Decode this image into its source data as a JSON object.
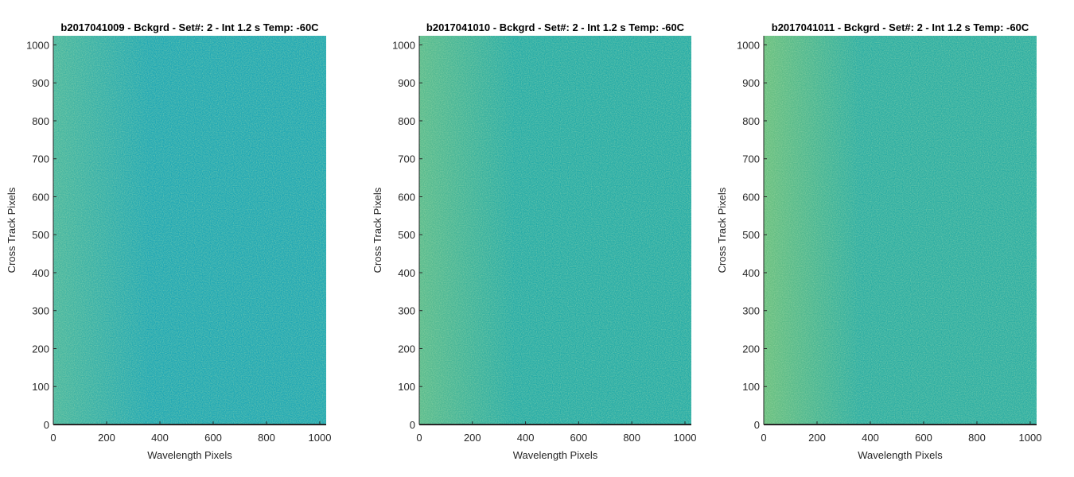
{
  "figure": {
    "background": "#ffffff"
  },
  "chart_data": [
    {
      "type": "heatmap",
      "title": "b2017041009 - Bckgrd - Set#: 2 - Int 1.2 s Temp: -60C",
      "xlabel": "Wavelength Pixels",
      "ylabel": "Cross Track Pixels",
      "xlim": [
        0,
        1024
      ],
      "ylim": [
        0,
        1024
      ],
      "xticks": [
        0,
        200,
        400,
        600,
        800,
        1000
      ],
      "yticks": [
        0,
        100,
        200,
        300,
        400,
        500,
        600,
        700,
        800,
        900,
        1000
      ],
      "grid": false,
      "colormap": "parula",
      "base_color": "#22a8b4",
      "edge_color": "#4ab7a0",
      "noise_color": "#7cc47a",
      "gradient_note": "slightly greener toward low wavelength pixels"
    },
    {
      "type": "heatmap",
      "title": "b2017041010 - Bckgrd - Set#: 2 - Int 1.2 s Temp: -60C",
      "xlabel": "Wavelength Pixels",
      "ylabel": "Cross Track Pixels",
      "xlim": [
        0,
        1024
      ],
      "ylim": [
        0,
        1024
      ],
      "xticks": [
        0,
        200,
        400,
        600,
        800,
        1000
      ],
      "yticks": [
        0,
        100,
        200,
        300,
        400,
        500,
        600,
        700,
        800,
        900,
        1000
      ],
      "grid": false,
      "colormap": "parula",
      "base_color": "#28aca8",
      "edge_color": "#5cbc8e",
      "noise_color": "#8ec86c",
      "gradient_note": "slightly greener toward low wavelength pixels"
    },
    {
      "type": "heatmap",
      "title": "b2017041011 - Bckgrd - Set#: 2 - Int 1.2 s Temp: -60C",
      "xlabel": "Wavelength Pixels",
      "ylabel": "Cross Track Pixels",
      "xlim": [
        0,
        1024
      ],
      "ylim": [
        0,
        1024
      ],
      "xticks": [
        0,
        200,
        400,
        600,
        800,
        1000
      ],
      "yticks": [
        0,
        100,
        200,
        300,
        400,
        500,
        600,
        700,
        800,
        900,
        1000
      ],
      "grid": false,
      "colormap": "parula",
      "base_color": "#2eaea4",
      "edge_color": "#6cc080",
      "noise_color": "#9ccb63",
      "gradient_note": "noticeably greener toward low wavelength pixels"
    }
  ]
}
